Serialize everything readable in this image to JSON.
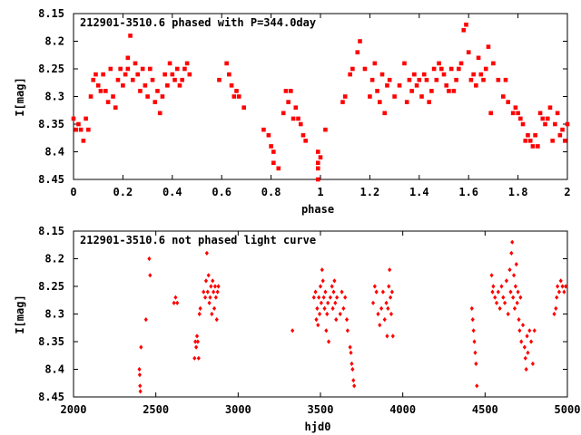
{
  "chart_data": [
    {
      "type": "scatter",
      "title": "212901-3510.6 phased with P=344.0day",
      "xlabel": "phase",
      "ylabel": "I[mag]",
      "xlim": [
        0,
        2
      ],
      "ylim": [
        8.45,
        8.15
      ],
      "y_inverted": true,
      "x_ticks": [
        "0",
        "0.2",
        "0.4",
        "0.6",
        "0.8",
        "1",
        "1.2",
        "1.4",
        "1.6",
        "1.8",
        "2"
      ],
      "y_ticks": [
        "8.15",
        "8.2",
        "8.25",
        "8.3",
        "8.35",
        "8.4",
        "8.45"
      ],
      "grid": false,
      "marker": "filled-square",
      "color": "#ff0000",
      "points": [
        [
          0.0,
          8.34
        ],
        [
          0.01,
          8.36
        ],
        [
          0.02,
          8.35
        ],
        [
          0.03,
          8.36
        ],
        [
          0.04,
          8.38
        ],
        [
          0.05,
          8.34
        ],
        [
          0.06,
          8.36
        ],
        [
          0.07,
          8.3
        ],
        [
          0.08,
          8.27
        ],
        [
          0.09,
          8.26
        ],
        [
          0.1,
          8.28
        ],
        [
          0.11,
          8.29
        ],
        [
          0.12,
          8.26
        ],
        [
          0.13,
          8.29
        ],
        [
          0.14,
          8.31
        ],
        [
          0.15,
          8.25
        ],
        [
          0.16,
          8.3
        ],
        [
          0.17,
          8.32
        ],
        [
          0.18,
          8.27
        ],
        [
          0.19,
          8.25
        ],
        [
          0.2,
          8.28
        ],
        [
          0.21,
          8.26
        ],
        [
          0.22,
          8.25
        ],
        [
          0.22,
          8.23
        ],
        [
          0.23,
          8.19
        ],
        [
          0.24,
          8.27
        ],
        [
          0.25,
          8.24
        ],
        [
          0.26,
          8.26
        ],
        [
          0.27,
          8.29
        ],
        [
          0.28,
          8.25
        ],
        [
          0.29,
          8.28
        ],
        [
          0.3,
          8.3
        ],
        [
          0.31,
          8.25
        ],
        [
          0.32,
          8.27
        ],
        [
          0.33,
          8.31
        ],
        [
          0.34,
          8.29
        ],
        [
          0.35,
          8.33
        ],
        [
          0.36,
          8.3
        ],
        [
          0.37,
          8.26
        ],
        [
          0.38,
          8.28
        ],
        [
          0.39,
          8.24
        ],
        [
          0.4,
          8.26
        ],
        [
          0.41,
          8.27
        ],
        [
          0.42,
          8.25
        ],
        [
          0.43,
          8.28
        ],
        [
          0.44,
          8.27
        ],
        [
          0.45,
          8.25
        ],
        [
          0.46,
          8.24
        ],
        [
          0.47,
          8.26
        ],
        [
          0.59,
          8.27
        ],
        [
          0.62,
          8.24
        ],
        [
          0.63,
          8.26
        ],
        [
          0.64,
          8.28
        ],
        [
          0.65,
          8.3
        ],
        [
          0.66,
          8.29
        ],
        [
          0.67,
          8.3
        ],
        [
          0.69,
          8.32
        ],
        [
          0.77,
          8.36
        ],
        [
          0.79,
          8.37
        ],
        [
          0.8,
          8.39
        ],
        [
          0.81,
          8.4
        ],
        [
          0.81,
          8.42
        ],
        [
          0.83,
          8.43
        ],
        [
          0.85,
          8.33
        ],
        [
          0.86,
          8.29
        ],
        [
          0.87,
          8.31
        ],
        [
          0.88,
          8.29
        ],
        [
          0.89,
          8.34
        ],
        [
          0.9,
          8.32
        ],
        [
          0.91,
          8.34
        ],
        [
          0.92,
          8.35
        ],
        [
          0.93,
          8.37
        ],
        [
          0.94,
          8.38
        ],
        [
          0.99,
          8.4
        ],
        [
          0.99,
          8.42
        ],
        [
          0.99,
          8.43
        ],
        [
          0.99,
          8.45
        ],
        [
          1.0,
          8.41
        ],
        [
          1.02,
          8.36
        ],
        [
          1.09,
          8.31
        ],
        [
          1.1,
          8.3
        ],
        [
          1.12,
          8.26
        ],
        [
          1.13,
          8.25
        ],
        [
          1.15,
          8.22
        ],
        [
          1.16,
          8.2
        ],
        [
          1.18,
          8.25
        ],
        [
          1.2,
          8.3
        ],
        [
          1.21,
          8.27
        ],
        [
          1.22,
          8.24
        ],
        [
          1.23,
          8.29
        ],
        [
          1.24,
          8.31
        ],
        [
          1.25,
          8.26
        ],
        [
          1.26,
          8.33
        ],
        [
          1.27,
          8.28
        ],
        [
          1.28,
          8.27
        ],
        [
          1.3,
          8.3
        ],
        [
          1.32,
          8.28
        ],
        [
          1.34,
          8.24
        ],
        [
          1.35,
          8.31
        ],
        [
          1.36,
          8.27
        ],
        [
          1.37,
          8.29
        ],
        [
          1.38,
          8.26
        ],
        [
          1.39,
          8.28
        ],
        [
          1.4,
          8.27
        ],
        [
          1.41,
          8.3
        ],
        [
          1.42,
          8.26
        ],
        [
          1.43,
          8.27
        ],
        [
          1.44,
          8.31
        ],
        [
          1.45,
          8.29
        ],
        [
          1.46,
          8.25
        ],
        [
          1.47,
          8.27
        ],
        [
          1.48,
          8.24
        ],
        [
          1.49,
          8.25
        ],
        [
          1.5,
          8.26
        ],
        [
          1.51,
          8.28
        ],
        [
          1.52,
          8.29
        ],
        [
          1.53,
          8.25
        ],
        [
          1.54,
          8.29
        ],
        [
          1.55,
          8.27
        ],
        [
          1.56,
          8.25
        ],
        [
          1.57,
          8.24
        ],
        [
          1.58,
          8.18
        ],
        [
          1.59,
          8.17
        ],
        [
          1.6,
          8.22
        ],
        [
          1.61,
          8.27
        ],
        [
          1.62,
          8.26
        ],
        [
          1.63,
          8.28
        ],
        [
          1.64,
          8.23
        ],
        [
          1.65,
          8.26
        ],
        [
          1.66,
          8.27
        ],
        [
          1.67,
          8.25
        ],
        [
          1.68,
          8.21
        ],
        [
          1.69,
          8.33
        ],
        [
          1.7,
          8.24
        ],
        [
          1.72,
          8.27
        ],
        [
          1.74,
          8.3
        ],
        [
          1.75,
          8.27
        ],
        [
          1.76,
          8.31
        ],
        [
          1.78,
          8.33
        ],
        [
          1.79,
          8.32
        ],
        [
          1.8,
          8.33
        ],
        [
          1.81,
          8.34
        ],
        [
          1.82,
          8.35
        ],
        [
          1.83,
          8.38
        ],
        [
          1.84,
          8.37
        ],
        [
          1.85,
          8.38
        ],
        [
          1.86,
          8.39
        ],
        [
          1.87,
          8.37
        ],
        [
          1.88,
          8.39
        ],
        [
          1.89,
          8.33
        ],
        [
          1.9,
          8.34
        ],
        [
          1.91,
          8.35
        ],
        [
          1.92,
          8.34
        ],
        [
          1.93,
          8.32
        ],
        [
          1.94,
          8.38
        ],
        [
          1.95,
          8.35
        ],
        [
          1.96,
          8.33
        ],
        [
          1.97,
          8.37
        ],
        [
          1.98,
          8.36
        ],
        [
          1.99,
          8.38
        ],
        [
          2.0,
          8.35
        ]
      ]
    },
    {
      "type": "scatter",
      "title": "212901-3510.6 not phased light curve",
      "xlabel": "hjd0",
      "ylabel": "I[mag]",
      "xlim": [
        2000,
        5000
      ],
      "ylim": [
        8.45,
        8.15
      ],
      "y_inverted": true,
      "x_ticks": [
        "2000",
        "2500",
        "3000",
        "3500",
        "4000",
        "4500",
        "5000"
      ],
      "y_ticks": [
        "8.15",
        "8.2",
        "8.25",
        "8.3",
        "8.35",
        "8.4",
        "8.45"
      ],
      "grid": false,
      "marker": "diamond",
      "color": "#ff0000",
      "points": [
        [
          2400,
          8.4
        ],
        [
          2402,
          8.41
        ],
        [
          2404,
          8.43
        ],
        [
          2406,
          8.44
        ],
        [
          2410,
          8.36
        ],
        [
          2440,
          8.31
        ],
        [
          2460,
          8.2
        ],
        [
          2465,
          8.23
        ],
        [
          2610,
          8.28
        ],
        [
          2620,
          8.27
        ],
        [
          2630,
          8.28
        ],
        [
          2735,
          8.38
        ],
        [
          2740,
          8.35
        ],
        [
          2745,
          8.36
        ],
        [
          2750,
          8.34
        ],
        [
          2755,
          8.35
        ],
        [
          2760,
          8.38
        ],
        [
          2765,
          8.3
        ],
        [
          2770,
          8.29
        ],
        [
          2790,
          8.26
        ],
        [
          2800,
          8.27
        ],
        [
          2805,
          8.24
        ],
        [
          2810,
          8.19
        ],
        [
          2815,
          8.26
        ],
        [
          2820,
          8.23
        ],
        [
          2825,
          8.28
        ],
        [
          2830,
          8.27
        ],
        [
          2835,
          8.25
        ],
        [
          2840,
          8.3
        ],
        [
          2845,
          8.24
        ],
        [
          2850,
          8.26
        ],
        [
          2855,
          8.29
        ],
        [
          2860,
          8.25
        ],
        [
          2865,
          8.27
        ],
        [
          2870,
          8.31
        ],
        [
          2875,
          8.26
        ],
        [
          2880,
          8.25
        ],
        [
          3330,
          8.33
        ],
        [
          3460,
          8.27
        ],
        [
          3470,
          8.26
        ],
        [
          3475,
          8.31
        ],
        [
          3480,
          8.29
        ],
        [
          3485,
          8.32
        ],
        [
          3490,
          8.27
        ],
        [
          3495,
          8.3
        ],
        [
          3500,
          8.25
        ],
        [
          3505,
          8.28
        ],
        [
          3510,
          8.22
        ],
        [
          3515,
          8.24
        ],
        [
          3520,
          8.27
        ],
        [
          3525,
          8.29
        ],
        [
          3530,
          8.26
        ],
        [
          3535,
          8.33
        ],
        [
          3540,
          8.3
        ],
        [
          3545,
          8.28
        ],
        [
          3550,
          8.35
        ],
        [
          3560,
          8.27
        ],
        [
          3570,
          8.25
        ],
        [
          3575,
          8.29
        ],
        [
          3580,
          8.26
        ],
        [
          3585,
          8.24
        ],
        [
          3590,
          8.28
        ],
        [
          3595,
          8.31
        ],
        [
          3600,
          8.27
        ],
        [
          3620,
          8.3
        ],
        [
          3630,
          8.26
        ],
        [
          3640,
          8.29
        ],
        [
          3650,
          8.27
        ],
        [
          3660,
          8.31
        ],
        [
          3665,
          8.33
        ],
        [
          3680,
          8.36
        ],
        [
          3685,
          8.37
        ],
        [
          3690,
          8.39
        ],
        [
          3695,
          8.4
        ],
        [
          3700,
          8.42
        ],
        [
          3705,
          8.43
        ],
        [
          3820,
          8.28
        ],
        [
          3830,
          8.25
        ],
        [
          3840,
          8.26
        ],
        [
          3850,
          8.3
        ],
        [
          3860,
          8.32
        ],
        [
          3870,
          8.29
        ],
        [
          3880,
          8.26
        ],
        [
          3890,
          8.31
        ],
        [
          3900,
          8.28
        ],
        [
          3905,
          8.34
        ],
        [
          3910,
          8.29
        ],
        [
          3915,
          8.25
        ],
        [
          3920,
          8.22
        ],
        [
          3925,
          8.27
        ],
        [
          3930,
          8.3
        ],
        [
          3935,
          8.26
        ],
        [
          3940,
          8.34
        ],
        [
          4420,
          8.29
        ],
        [
          4425,
          8.31
        ],
        [
          4430,
          8.33
        ],
        [
          4435,
          8.35
        ],
        [
          4440,
          8.37
        ],
        [
          4445,
          8.39
        ],
        [
          4450,
          8.43
        ],
        [
          4540,
          8.23
        ],
        [
          4545,
          8.26
        ],
        [
          4550,
          8.25
        ],
        [
          4560,
          8.27
        ],
        [
          4570,
          8.28
        ],
        [
          4580,
          8.26
        ],
        [
          4590,
          8.29
        ],
        [
          4600,
          8.25
        ],
        [
          4610,
          8.27
        ],
        [
          4620,
          8.28
        ],
        [
          4630,
          8.24
        ],
        [
          4640,
          8.3
        ],
        [
          4650,
          8.22
        ],
        [
          4655,
          8.26
        ],
        [
          4660,
          8.19
        ],
        [
          4665,
          8.17
        ],
        [
          4670,
          8.27
        ],
        [
          4675,
          8.23
        ],
        [
          4680,
          8.29
        ],
        [
          4685,
          8.25
        ],
        [
          4690,
          8.21
        ],
        [
          4695,
          8.28
        ],
        [
          4700,
          8.26
        ],
        [
          4705,
          8.31
        ],
        [
          4710,
          8.33
        ],
        [
          4715,
          8.27
        ],
        [
          4720,
          8.35
        ],
        [
          4730,
          8.32
        ],
        [
          4740,
          8.36
        ],
        [
          4745,
          8.38
        ],
        [
          4750,
          8.4
        ],
        [
          4755,
          8.34
        ],
        [
          4760,
          8.37
        ],
        [
          4770,
          8.33
        ],
        [
          4780,
          8.35
        ],
        [
          4790,
          8.39
        ],
        [
          4800,
          8.33
        ],
        [
          4920,
          8.3
        ],
        [
          4930,
          8.29
        ],
        [
          4935,
          8.27
        ],
        [
          4940,
          8.25
        ],
        [
          4950,
          8.26
        ],
        [
          4960,
          8.24
        ],
        [
          4970,
          8.25
        ],
        [
          4980,
          8.26
        ],
        [
          4990,
          8.25
        ]
      ]
    }
  ]
}
